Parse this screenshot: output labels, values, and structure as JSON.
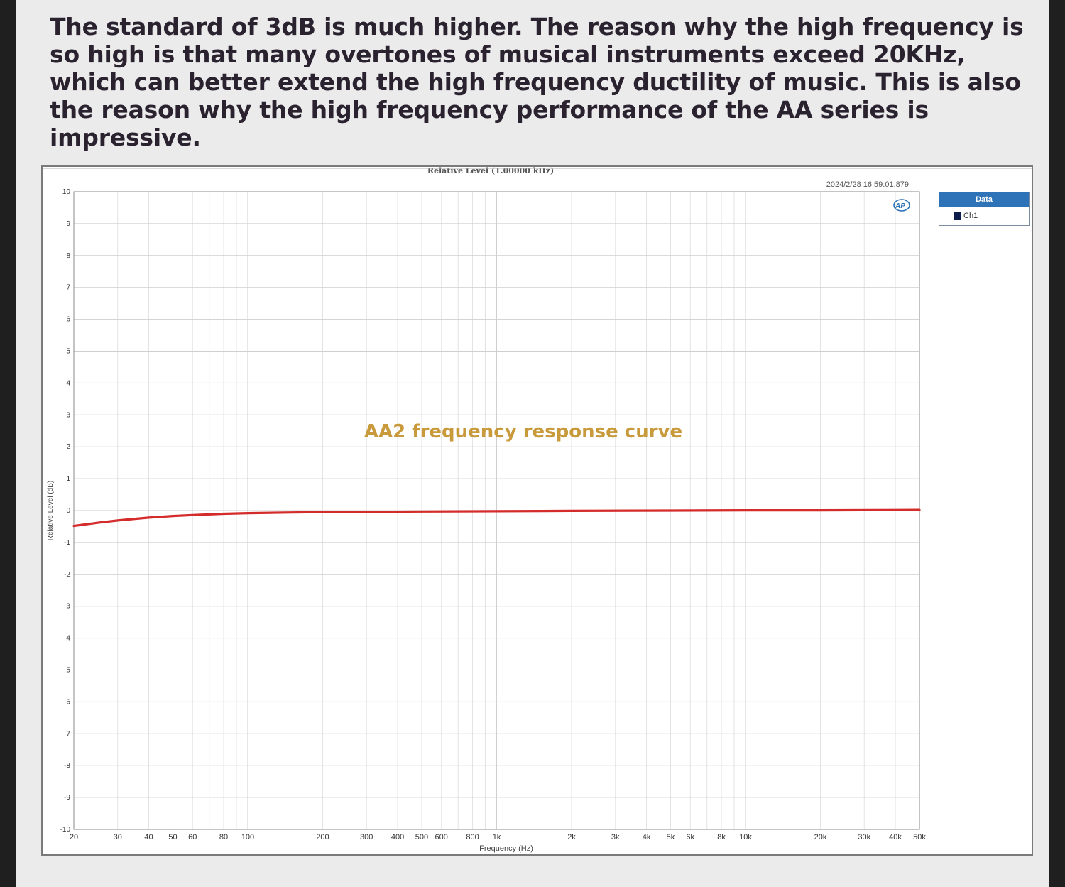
{
  "description": "The standard of 3dB is much higher. The reason why the high frequency is so high is that many overtones of musical instruments exceed 20KHz, which can better extend the high frequency ductility of music. This is also the reason why the high frequency performance of the AA series is impressive.",
  "chart_data": {
    "type": "line",
    "title": "Relative Level (1.00000 kHz)",
    "timestamp": "2024/2/28 16:59:01.879",
    "annotation": "AA2 frequency response curve",
    "xlabel": "Frequency (Hz)",
    "ylabel": "Relative Level (dB)",
    "x_scale": "log",
    "xlim": [
      20,
      50000
    ],
    "ylim": [
      -10,
      10
    ],
    "grid": true,
    "legend_title": "Data",
    "legend_position": "right",
    "x_ticks": [
      {
        "v": 20,
        "label": "20"
      },
      {
        "v": 30,
        "label": "30"
      },
      {
        "v": 40,
        "label": "40"
      },
      {
        "v": 50,
        "label": "50"
      },
      {
        "v": 60,
        "label": "60"
      },
      {
        "v": 80,
        "label": "80"
      },
      {
        "v": 100,
        "label": "100"
      },
      {
        "v": 200,
        "label": "200"
      },
      {
        "v": 300,
        "label": "300"
      },
      {
        "v": 400,
        "label": "400"
      },
      {
        "v": 500,
        "label": "500"
      },
      {
        "v": 600,
        "label": "600"
      },
      {
        "v": 800,
        "label": "800"
      },
      {
        "v": 1000,
        "label": "1k"
      },
      {
        "v": 2000,
        "label": "2k"
      },
      {
        "v": 3000,
        "label": "3k"
      },
      {
        "v": 4000,
        "label": "4k"
      },
      {
        "v": 5000,
        "label": "5k"
      },
      {
        "v": 6000,
        "label": "6k"
      },
      {
        "v": 8000,
        "label": "8k"
      },
      {
        "v": 10000,
        "label": "10k"
      },
      {
        "v": 20000,
        "label": "20k"
      },
      {
        "v": 30000,
        "label": "30k"
      },
      {
        "v": 40000,
        "label": "40k"
      },
      {
        "v": 50000,
        "label": "50k"
      }
    ],
    "y_ticks": [
      10,
      9,
      8,
      7,
      6,
      5,
      4,
      3,
      2,
      1,
      0,
      -1,
      -2,
      -3,
      -4,
      -5,
      -6,
      -7,
      -8,
      -9,
      -10
    ],
    "series": [
      {
        "name": "Ch1",
        "color": "#d42b2b",
        "legend_color": "#0d1b4a",
        "x": [
          20,
          25,
          30,
          40,
          50,
          60,
          80,
          100,
          150,
          200,
          300,
          500,
          1000,
          2000,
          5000,
          10000,
          20000,
          50000
        ],
        "y": [
          -0.48,
          -0.38,
          -0.31,
          -0.22,
          -0.17,
          -0.14,
          -0.1,
          -0.08,
          -0.06,
          -0.05,
          -0.04,
          -0.03,
          -0.02,
          -0.01,
          0.0,
          0.01,
          0.01,
          0.02
        ]
      }
    ]
  }
}
